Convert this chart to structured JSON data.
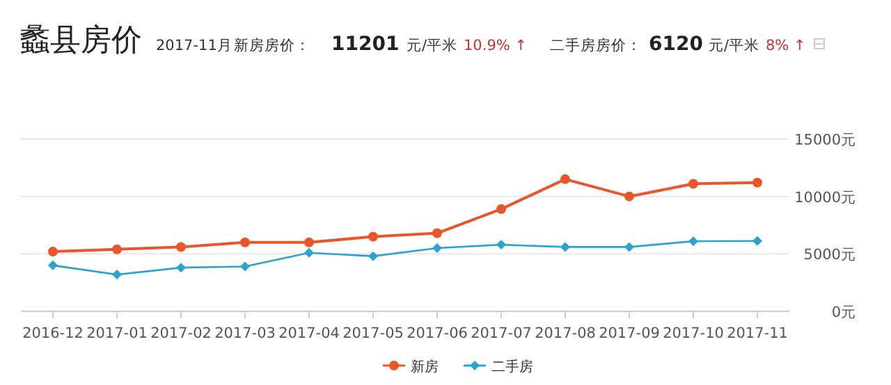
{
  "chart_data": {
    "type": "line",
    "title": "蠡县房价",
    "annotations": [
      "2017-11月",
      "新房房价：",
      "11201",
      "元/平米",
      "10.9% ↑",
      "二手房房价：",
      "6120",
      "元/平米",
      "8% ↑"
    ],
    "categories": [
      "2016-12",
      "2017-01",
      "2017-02",
      "2017-03",
      "2017-04",
      "2017-05",
      "2017-06",
      "2017-07",
      "2017-08",
      "2017-09",
      "2017-10",
      "2017-11"
    ],
    "series": [
      {
        "name": "新房",
        "color": "#e8562a",
        "marker": "circle",
        "values": [
          5200,
          5400,
          5600,
          6000,
          6000,
          6500,
          6800,
          8900,
          11500,
          10000,
          11100,
          11201
        ]
      },
      {
        "name": "二手房",
        "color": "#2ba3cf",
        "marker": "diamond",
        "values": [
          4000,
          3200,
          3800,
          3900,
          5100,
          4800,
          5500,
          5800,
          5600,
          5600,
          6100,
          6120
        ]
      }
    ],
    "ylim": [
      0,
      15000
    ],
    "yticks": [
      {
        "value": 0,
        "label": "0元"
      },
      {
        "value": 5000,
        "label": "5000元"
      },
      {
        "value": 10000,
        "label": "10000元"
      },
      {
        "value": 15000,
        "label": "15000元"
      }
    ],
    "grid": "y",
    "legend": "bottom"
  }
}
